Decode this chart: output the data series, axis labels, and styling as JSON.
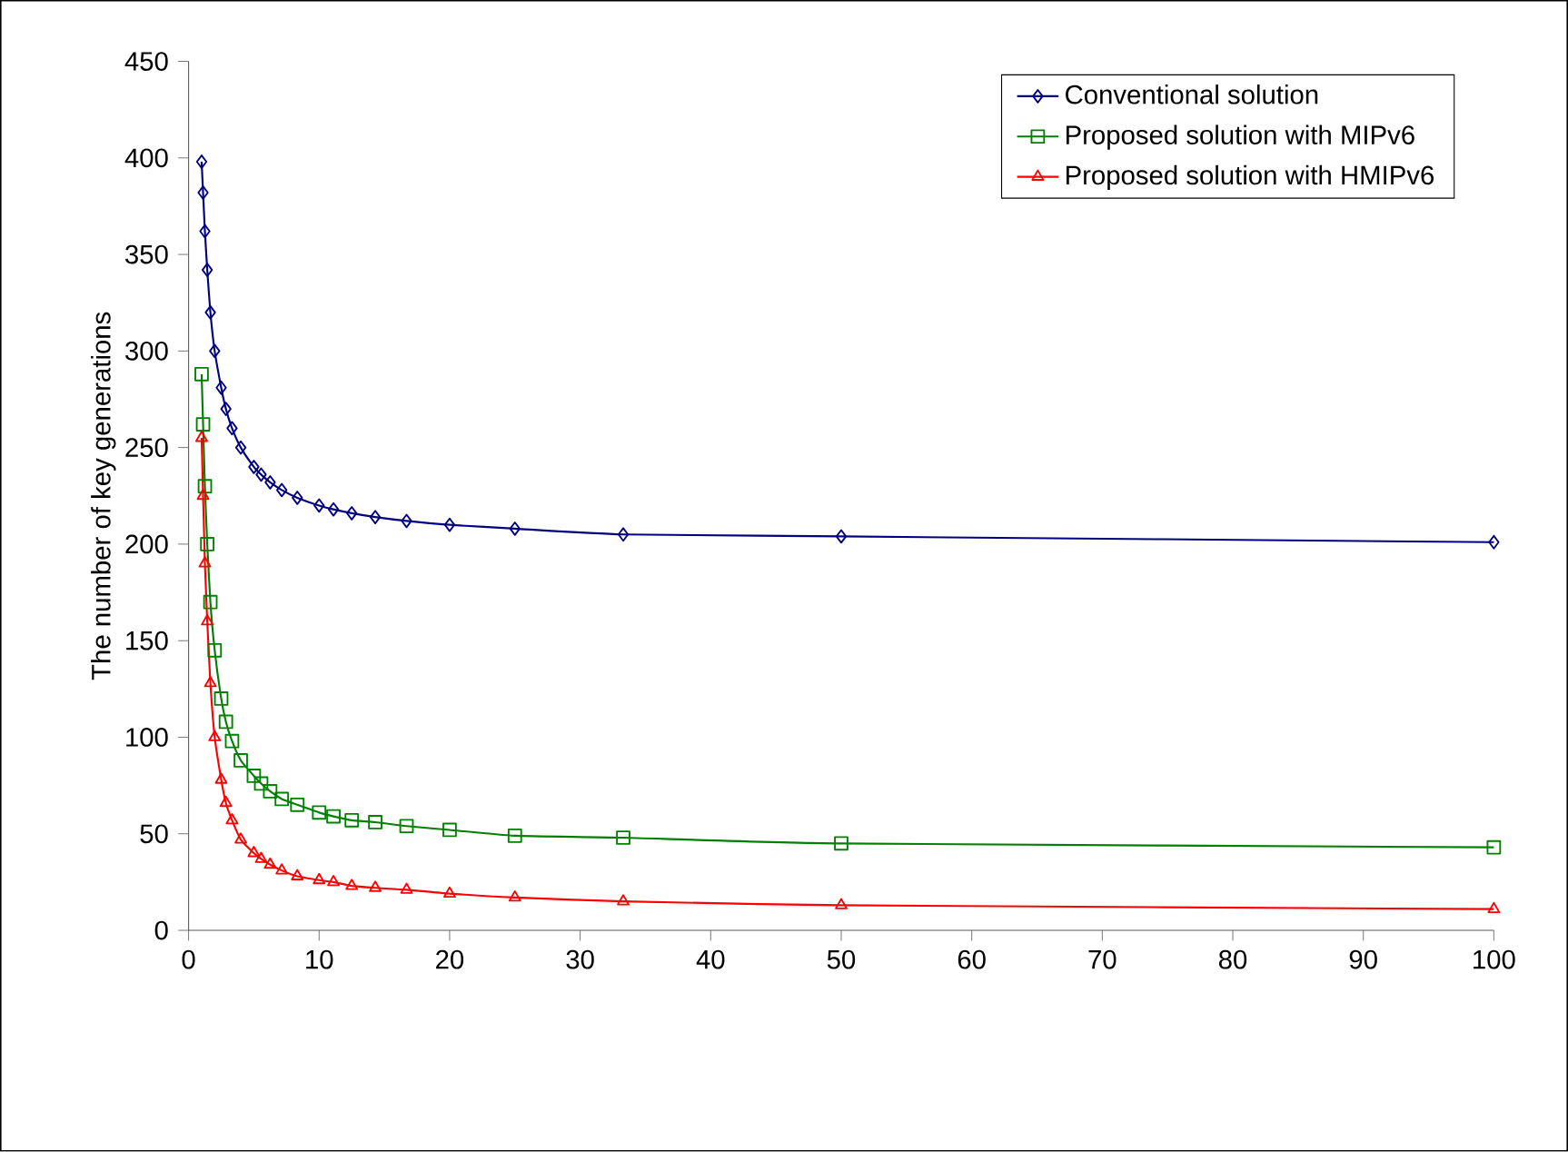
{
  "chart_data": {
    "type": "line",
    "ylabel": "The number of key generations",
    "xlim": [
      0,
      100
    ],
    "ylim": [
      0,
      450
    ],
    "xticks": [
      0,
      10,
      20,
      30,
      40,
      50,
      60,
      70,
      80,
      90,
      100
    ],
    "yticks": [
      0,
      50,
      100,
      150,
      200,
      250,
      300,
      350,
      400,
      450
    ],
    "x": [
      1,
      1.11,
      1.25,
      1.43,
      1.67,
      2,
      2.5,
      2.86,
      3.33,
      4,
      5,
      5.56,
      6.25,
      7.14,
      8.33,
      10,
      11.1,
      12.5,
      14.3,
      16.7,
      20,
      25,
      33.3,
      50,
      100
    ],
    "legend": "top right",
    "grid": false,
    "line_style": "solid",
    "series": [
      {
        "name": "Conventional solution",
        "color": "#000080",
        "marker": "diamond",
        "values": [
          398,
          382,
          362,
          342,
          320,
          300,
          281,
          270,
          260,
          250,
          240,
          236,
          232,
          228,
          224,
          220,
          218,
          216,
          214,
          212,
          210,
          208,
          205,
          204,
          201
        ]
      },
      {
        "name": "Proposed solution with MIPv6",
        "color": "#008000",
        "marker": "square",
        "values": [
          288,
          262,
          230,
          200,
          170,
          145,
          120,
          108,
          98,
          88,
          80,
          76,
          72,
          68,
          65,
          61,
          59,
          57,
          56,
          54,
          52,
          49,
          48,
          45,
          43
        ]
      },
      {
        "name": "Proposed solution with HMIPv6",
        "color": "#ff0000",
        "marker": "triangle",
        "values": [
          255,
          225,
          190,
          160,
          128,
          100,
          78,
          66,
          57,
          47,
          40,
          37,
          34,
          31,
          28,
          26,
          25,
          23,
          22,
          21,
          19,
          17,
          15,
          13,
          11
        ]
      }
    ]
  }
}
